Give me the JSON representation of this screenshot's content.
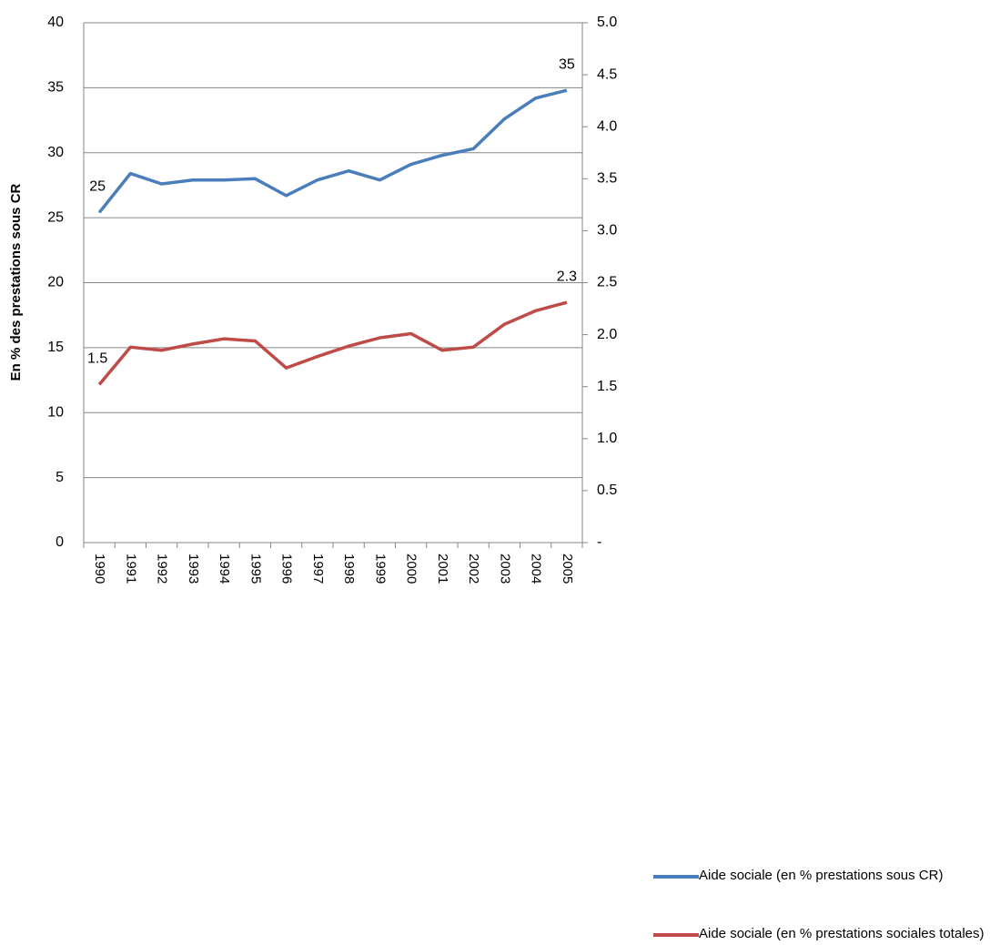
{
  "chart_data": {
    "type": "line",
    "y_label": "En % des prestations sous CR",
    "categories": [
      "1990",
      "1991",
      "1992",
      "1993",
      "1994",
      "1995",
      "1996",
      "1997",
      "1998",
      "1999",
      "2000",
      "2001",
      "2002",
      "2003",
      "2004",
      "2005"
    ],
    "series": [
      {
        "name": "Aide sociale (en % prestations sous CR)",
        "color": "#4a7ebb",
        "axis": "y",
        "values": [
          25.4,
          28.4,
          27.6,
          27.9,
          27.9,
          28.0,
          26.7,
          27.9,
          28.6,
          27.9,
          29.1,
          29.8,
          30.3,
          32.6,
          34.2,
          34.8
        ],
        "value_labels": [
          "25",
          null,
          null,
          null,
          null,
          null,
          null,
          null,
          null,
          null,
          null,
          null,
          null,
          null,
          null,
          "35"
        ]
      },
      {
        "name": "Aide sociale (en % prestations sociales totales)",
        "color": "#be4b48",
        "axis": "y2",
        "values": [
          1.52,
          1.88,
          1.85,
          1.91,
          1.96,
          1.94,
          1.68,
          1.79,
          1.89,
          1.97,
          2.01,
          1.85,
          1.88,
          2.1,
          2.23,
          2.31
        ],
        "value_labels": [
          "1.5",
          null,
          null,
          null,
          null,
          null,
          null,
          null,
          null,
          null,
          null,
          null,
          null,
          null,
          null,
          "2.3"
        ]
      }
    ],
    "ylim": [
      0,
      40
    ],
    "yticks": [
      0,
      5,
      10,
      15,
      20,
      25,
      30,
      35,
      40
    ],
    "y2lim": [
      0,
      5
    ],
    "y2ticks": [
      {
        "value": 0,
        "label": "-"
      },
      0.5,
      {
        "value": 1,
        "label": "1.0"
      },
      1.5,
      {
        "value": 2,
        "label": "2.0"
      },
      2.5,
      {
        "value": 3,
        "label": "3.0"
      },
      3.5,
      {
        "value": 4,
        "label": "4.0"
      },
      4.5,
      {
        "value": 5,
        "label": "5.0"
      }
    ],
    "grid": true,
    "legend": "right"
  }
}
